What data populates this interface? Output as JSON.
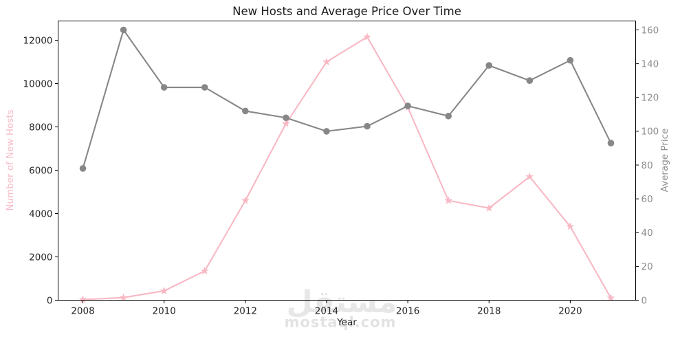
{
  "chart_data": {
    "type": "line",
    "title": "New Hosts and Average Price Over Time",
    "xlabel": "Year",
    "grid": false,
    "legend": "none",
    "x": [
      2008,
      2009,
      2010,
      2011,
      2012,
      2013,
      2014,
      2015,
      2016,
      2017,
      2018,
      2019,
      2020,
      2021
    ],
    "x_ticks": [
      2008,
      2010,
      2012,
      2014,
      2016,
      2018,
      2020
    ],
    "xlim": [
      2007.39,
      2021.61
    ],
    "left_axis": {
      "label": "Number of New Hosts",
      "label_color": "#f7bac6",
      "tick_color": "#262626",
      "ticks": [
        0,
        2000,
        4000,
        6000,
        8000,
        10000,
        12000
      ],
      "range": [
        0,
        12890
      ]
    },
    "right_axis": {
      "label": "Average Price",
      "label_color": "#8d8d8d",
      "tick_color": "#8d8d8d",
      "ticks": [
        0,
        20,
        40,
        60,
        80,
        100,
        120,
        140,
        160
      ],
      "range": [
        0,
        165.3
      ]
    },
    "series": [
      {
        "name": "Number of New Hosts",
        "axis": "left",
        "color": "#f8b8c4",
        "marker": "star",
        "values": [
          30,
          120,
          430,
          1350,
          4600,
          8150,
          11000,
          12150,
          8900,
          4600,
          4250,
          5700,
          3400,
          100
        ]
      },
      {
        "name": "Average Price",
        "axis": "right",
        "color": "#878787",
        "marker": "circle",
        "values": [
          78,
          160,
          126,
          126,
          112,
          108,
          100,
          103,
          115,
          109,
          139,
          130,
          142,
          93
        ]
      }
    ]
  },
  "watermark": {
    "logo": "مستقل",
    "domain": "mostaql.com"
  }
}
